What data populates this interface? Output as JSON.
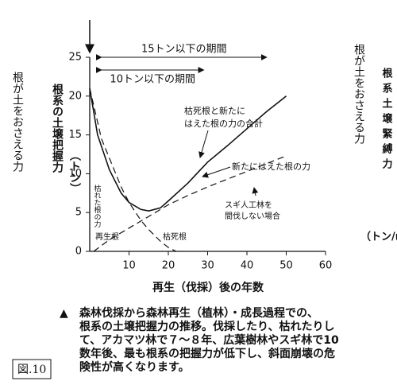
{
  "chart_data": {
    "type": "line",
    "xlabel": "再生（伐採）後の年数",
    "ylabel": [
      "根系の土壌把握力",
      "（トン）"
    ],
    "xlim": [
      0,
      60
    ],
    "xticks": [
      10,
      20,
      30,
      40,
      50,
      60
    ],
    "ylim": [
      0,
      25
    ],
    "yticks": [
      0,
      5,
      10,
      15,
      20,
      25
    ],
    "series": [
      {
        "color": "#111",
        "style": "solid",
        "x": [
          0,
          2,
          5,
          8,
          10,
          13,
          15,
          18,
          20,
          25,
          30,
          35,
          40,
          45,
          50
        ],
        "values": [
          21,
          15,
          10.5,
          7.5,
          6.3,
          5.4,
          5.2,
          5.6,
          6.5,
          8.8,
          11.5,
          13.6,
          15.8,
          18,
          20
        ]
      },
      {
        "color": "#111",
        "style": "dashed",
        "x": [
          0,
          3,
          5,
          8,
          10,
          13,
          15,
          18,
          20,
          22
        ],
        "values": [
          21,
          14.5,
          12,
          8.3,
          6.3,
          4,
          2.8,
          1.3,
          0.5,
          0
        ]
      },
      {
        "color": "#111",
        "style": "dashed",
        "x": [
          1,
          5,
          10,
          15,
          20,
          25,
          30,
          35,
          40,
          45,
          50
        ],
        "values": [
          0,
          1.5,
          3,
          4.5,
          6,
          7.2,
          8.3,
          9.3,
          10.3,
          11.3,
          12.3
        ]
      }
    ],
    "periods": [
      {
        "text": "15トン以下の期間",
        "span": [
          3,
          45
        ]
      },
      {
        "text": "10トン以下の期間",
        "span": [
          3,
          29
        ]
      }
    ],
    "annotations": {
      "total": [
        "枯死根と新たに",
        "はえた根の力の合計"
      ],
      "new": "新たにはえた根の力",
      "sugi": [
        "スギ人工林を",
        "間伐しない場合"
      ],
      "regen": "再生根",
      "dead": "枯死根",
      "dead_hand": "枯れた根の力"
    }
  },
  "side_labels": {
    "left_hand": "根が土をおさえる力",
    "right_hand": "根が土をおさえる力",
    "right_print": "根系土壌緊縛力",
    "right_unit": "（トン/m"
  },
  "caption": {
    "marker": "▲",
    "lines": [
      "森林伐採から森林再生（植林）・成長過程での、",
      "根系の土壌把握力の推移。伐採したり、枯れたりし",
      "て、アカマツ林で７～８年、広葉樹林やスギ林で10",
      "数年後、最も根系の把握力が低下し、斜面崩壊の危",
      "険性が高くなります。"
    ]
  },
  "figure_label": "図.10"
}
